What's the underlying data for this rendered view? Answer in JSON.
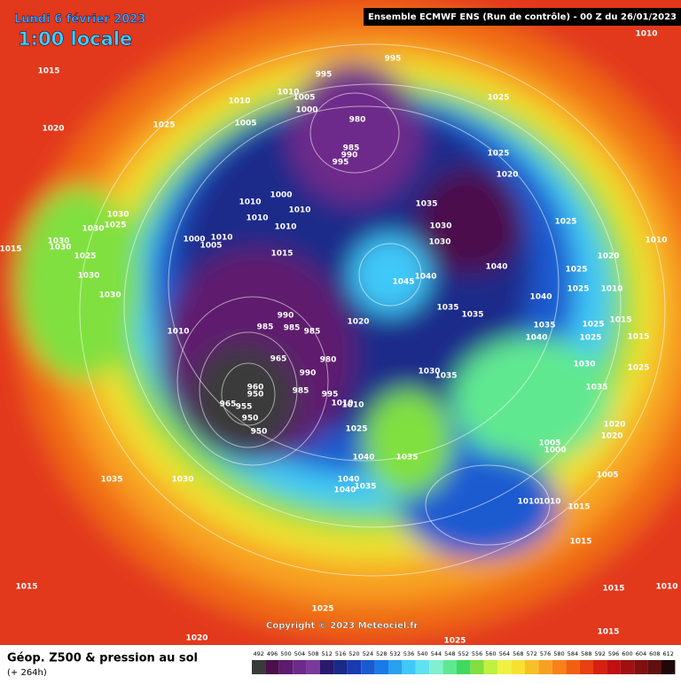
{
  "header": {
    "date": "Lundi 6 février 2023",
    "local_time": "1:00 locale",
    "run_info": "Ensemble ECMWF ENS  (Run de contrôle)  -  00 Z du 26/01/2023"
  },
  "isobar_labels": [
    "995",
    "995",
    "1010",
    "1005",
    "1000",
    "1010",
    "1005",
    "980",
    "985",
    "990",
    "995",
    "1025",
    "1025",
    "1020",
    "1015",
    "1010",
    "1025",
    "1020",
    "1035",
    "1030",
    "1030",
    "1040",
    "1045",
    "1040",
    "1035",
    "1035",
    "1040",
    "1035",
    "1040",
    "1025",
    "1025",
    "1025",
    "1010",
    "1020",
    "1010",
    "1015",
    "1015",
    "1025",
    "1025",
    "1030",
    "1025",
    "1035",
    "1020",
    "1020",
    "1005",
    "1005",
    "1000",
    "1010",
    "1010",
    "1015",
    "1015",
    "1015",
    "1010",
    "1015",
    "1030",
    "1030",
    "1025",
    "1030",
    "1030",
    "1015",
    "1025",
    "1030",
    "1030",
    "1010",
    "1000",
    "1010",
    "1005",
    "1010",
    "1010",
    "1000",
    "1010",
    "1010",
    "1015",
    "1020",
    "990",
    "985",
    "985",
    "985",
    "965",
    "980",
    "990",
    "960",
    "950",
    "955",
    "950",
    "950",
    "965",
    "985",
    "995",
    "1010",
    "1010",
    "1030",
    "1035",
    "1025",
    "1040",
    "1035",
    "1030",
    "1035",
    "1040",
    "1040",
    "1035",
    "1015",
    "1020",
    "1025",
    "1025"
  ],
  "copyright": "Copyright © 2023 Meteociel.fr",
  "footer": {
    "title": "Géop. Z500 & pression au sol",
    "lead_time": "(+ 264h)"
  },
  "colorbar": {
    "labels": [
      492,
      496,
      500,
      504,
      508,
      512,
      516,
      520,
      524,
      528,
      532,
      536,
      540,
      544,
      548,
      552,
      556,
      560,
      564,
      568,
      572,
      576,
      580,
      584,
      588,
      592,
      596,
      600,
      604,
      608,
      612
    ],
    "colors": [
      "#3a3a3a",
      "#4b0f4b",
      "#5e1a6e",
      "#6e2a8a",
      "#7a3a9a",
      "#2a1a6e",
      "#1a2a8a",
      "#1a3ab0",
      "#1a5ad0",
      "#1a7ae8",
      "#2aa0f0",
      "#40c8f8",
      "#60e0f0",
      "#80f0d0",
      "#60e890",
      "#40d860",
      "#80e040",
      "#c0f040",
      "#f0f040",
      "#f8e030",
      "#f8c028",
      "#f8a020",
      "#f88018",
      "#f06010",
      "#e84010",
      "#d82010",
      "#c01010",
      "#a01010",
      "#801010",
      "#601010",
      "#200808"
    ]
  }
}
